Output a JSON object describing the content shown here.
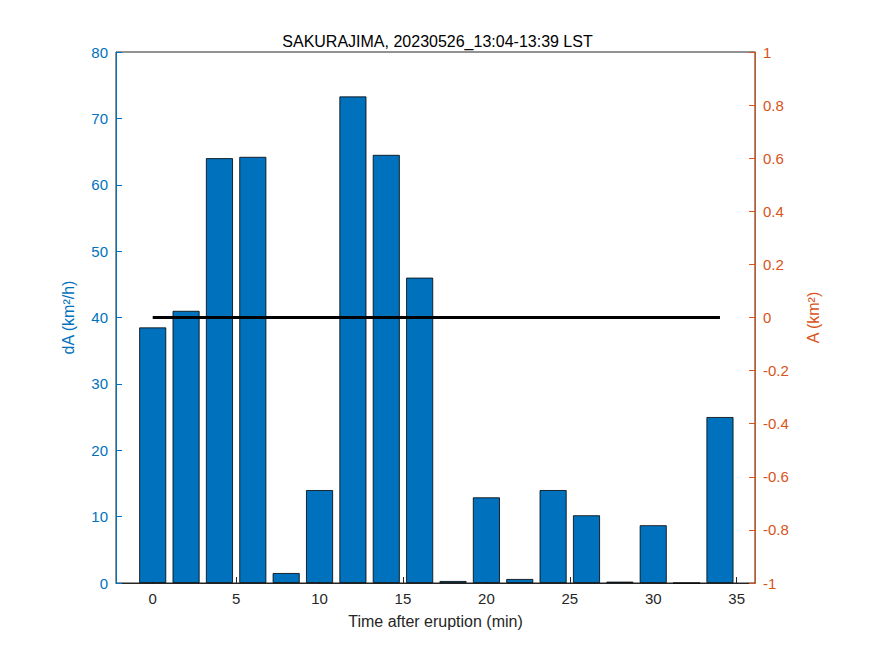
{
  "chart_data": {
    "type": "bar",
    "title": "SAKURAJIMA, 20230526_13:04-13:39 LST",
    "x_label": "Time after eruption (min)",
    "y_label": "dA (km²/h)",
    "y2_label": "A (km²)",
    "x": [
      0,
      2,
      4,
      6,
      8,
      10,
      12,
      14,
      16,
      18,
      20,
      22,
      24,
      26,
      28,
      30,
      32,
      34
    ],
    "series": [
      {
        "type": "bar",
        "color": "#0072BD",
        "values": [
          38.5,
          41,
          64,
          64.2,
          1.5,
          14,
          73.3,
          64.5,
          46,
          0.3,
          12.9,
          0.6,
          14,
          10.2,
          0.2,
          8.7,
          0,
          25
        ]
      },
      {
        "type": "line",
        "axis": "y2",
        "color": "#000000",
        "values": [
          0,
          0,
          0,
          0,
          0,
          0,
          0,
          0,
          0,
          0,
          0,
          0,
          0,
          0,
          0,
          0,
          0,
          0
        ]
      }
    ],
    "xlim": [
      -2.2,
      36.1
    ],
    "xticks": [
      0,
      5,
      10,
      15,
      20,
      25,
      30,
      35
    ],
    "ylim": [
      0,
      80
    ],
    "yticks": [
      0,
      10,
      20,
      30,
      40,
      50,
      60,
      70,
      80
    ],
    "y2lim": [
      -1,
      1
    ],
    "y2ticks": [
      -1,
      -0.8,
      -0.6,
      -0.4,
      -0.2,
      0,
      0.2,
      0.4,
      0.6,
      0.8,
      1
    ],
    "grid": false
  }
}
